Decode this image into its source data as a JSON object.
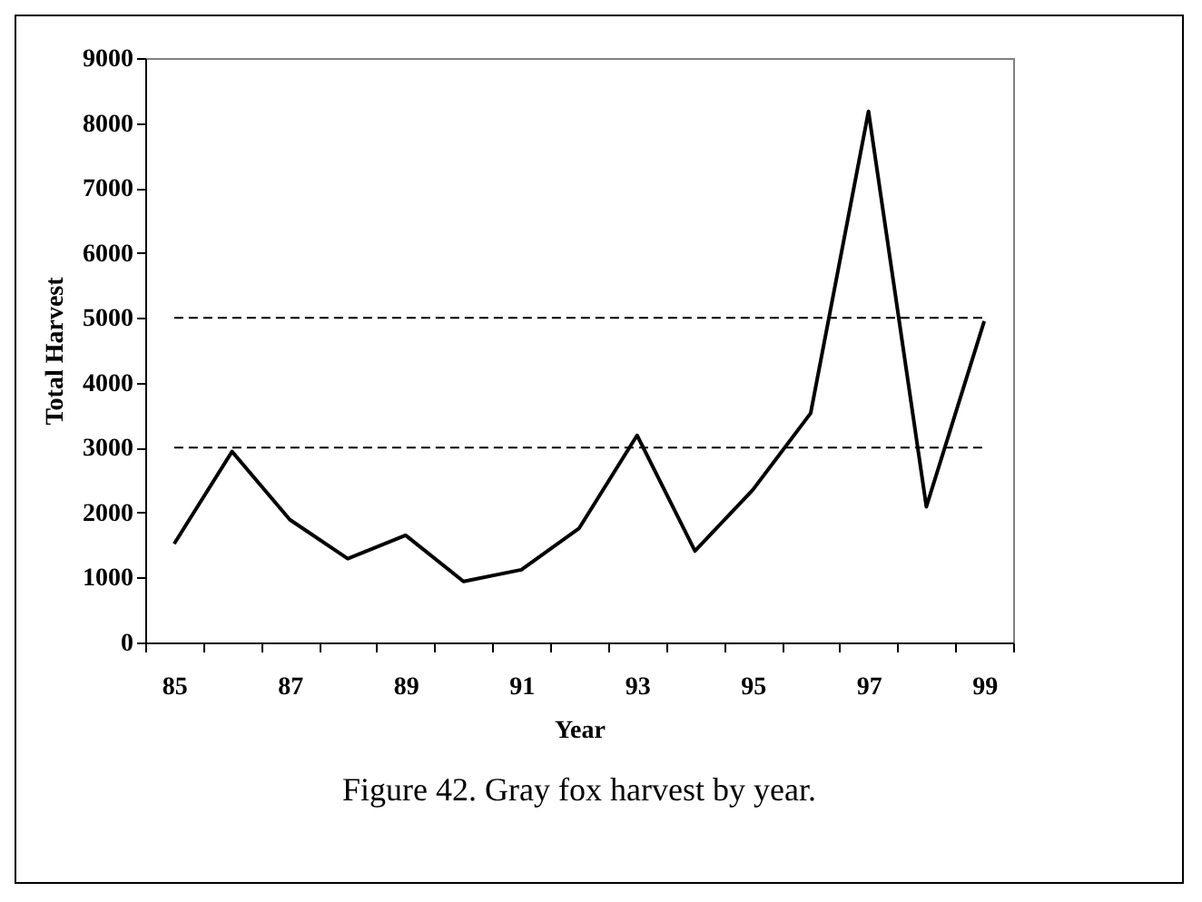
{
  "chart_data": {
    "type": "line",
    "xlabel": "Year",
    "ylabel": "Total Harvest",
    "categories": [
      "85",
      null,
      "87",
      null,
      "89",
      null,
      "91",
      null,
      "93",
      null,
      "95",
      null,
      "97",
      null,
      "99"
    ],
    "series": [
      {
        "color": "#000000",
        "values": [
          1520,
          2940,
          1890,
          1290,
          1650,
          940,
          1120,
          1760,
          3190,
          1410,
          2350,
          3530,
          8180,
          2090,
          4950
        ]
      }
    ],
    "ylim": [
      0,
      9000
    ],
    "yticks": [
      0,
      1000,
      2000,
      3000,
      4000,
      5000,
      6000,
      7000,
      8000,
      9000
    ],
    "ref_lines": [
      {
        "axis": "y",
        "value": 5000,
        "color": "#000000",
        "line_style": "dashed"
      },
      {
        "axis": "y",
        "value": 3000,
        "color": "#000000",
        "line_style": "dashed"
      }
    ],
    "annotations": [
      "Figure 42. Gray fox harvest by year."
    ],
    "grid": false,
    "marker": "none",
    "line_style": "solid"
  }
}
